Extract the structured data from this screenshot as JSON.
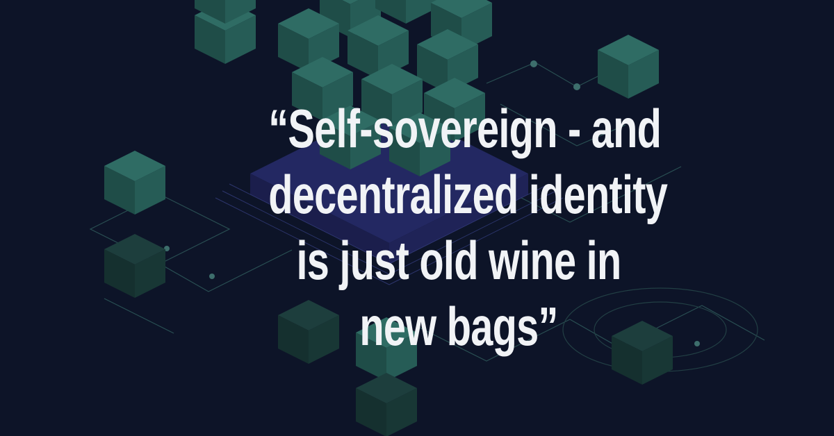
{
  "quote": {
    "lines": [
      "“Self-sovereign - and",
      "decentralized identity",
      "is just old wine in",
      "new bags”"
    ]
  },
  "colors": {
    "background": "#0d1428",
    "cube_top": "#2e6b63",
    "cube_left": "#1f4d48",
    "cube_right": "#255b55",
    "chip": "#2b2f72",
    "circuit_line": "#3b6b6a",
    "text": "#f1f3f6"
  },
  "decor": {
    "background_icon": "blockchain-cubes-illustration"
  }
}
